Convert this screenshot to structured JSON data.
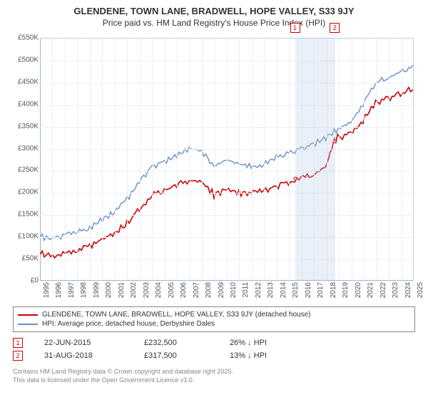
{
  "title": "GLENDENE, TOWN LANE, BRADWELL, HOPE VALLEY, S33 9JY",
  "subtitle": "Price paid vs. HM Land Registry's House Price Index (HPI)",
  "chart": {
    "type": "line",
    "background_color": "#ffffff",
    "grid_color": "#eaf0f8",
    "axis_color": "#94b5d8",
    "label_fontsize": 10,
    "ylim": [
      0,
      550000
    ],
    "ytick_step": 50000,
    "ylabels": [
      "£0",
      "£50K",
      "£100K",
      "£150K",
      "£200K",
      "£250K",
      "£300K",
      "£350K",
      "£400K",
      "£450K",
      "£500K",
      "£550K"
    ],
    "xlim_years": [
      1995,
      2025
    ],
    "xticks": [
      1995,
      1996,
      1997,
      1998,
      1999,
      2000,
      2001,
      2002,
      2003,
      2004,
      2005,
      2006,
      2007,
      2008,
      2009,
      2010,
      2011,
      2012,
      2013,
      2014,
      2015,
      2016,
      2017,
      2018,
      2019,
      2020,
      2021,
      2022,
      2023,
      2024,
      2025
    ],
    "series": [
      {
        "name": "HPI: Average price, detached house, Derbyshire Dales",
        "color": "#6a8fc5",
        "line_width": 1.4,
        "values": [
          [
            1995,
            100000
          ],
          [
            1996,
            95000
          ],
          [
            1997,
            105000
          ],
          [
            1998,
            110000
          ],
          [
            1999,
            120000
          ],
          [
            2000,
            140000
          ],
          [
            2001,
            155000
          ],
          [
            2002,
            185000
          ],
          [
            2003,
            225000
          ],
          [
            2004,
            260000
          ],
          [
            2005,
            270000
          ],
          [
            2006,
            285000
          ],
          [
            2007,
            300000
          ],
          [
            2008,
            295000
          ],
          [
            2009,
            260000
          ],
          [
            2010,
            275000
          ],
          [
            2011,
            265000
          ],
          [
            2012,
            260000
          ],
          [
            2013,
            265000
          ],
          [
            2014,
            280000
          ],
          [
            2015,
            290000
          ],
          [
            2016,
            300000
          ],
          [
            2017,
            310000
          ],
          [
            2018,
            325000
          ],
          [
            2019,
            345000
          ],
          [
            2020,
            360000
          ],
          [
            2021,
            400000
          ],
          [
            2022,
            450000
          ],
          [
            2023,
            460000
          ],
          [
            2024,
            475000
          ],
          [
            2025,
            485000
          ]
        ]
      },
      {
        "name": "GLENDENE, TOWN LANE, BRADWELL, HOPE VALLEY, S33 9JY (detached house)",
        "color": "#cc0000",
        "line_width": 1.6,
        "values": [
          [
            1995,
            60000
          ],
          [
            1996,
            58000
          ],
          [
            1997,
            65000
          ],
          [
            1998,
            70000
          ],
          [
            1999,
            78000
          ],
          [
            2000,
            95000
          ],
          [
            2001,
            108000
          ],
          [
            2002,
            130000
          ],
          [
            2003,
            165000
          ],
          [
            2004,
            195000
          ],
          [
            2005,
            205000
          ],
          [
            2006,
            218000
          ],
          [
            2007,
            228000
          ],
          [
            2008,
            225000
          ],
          [
            2009,
            195000
          ],
          [
            2010,
            208000
          ],
          [
            2011,
            200000
          ],
          [
            2012,
            198000
          ],
          [
            2013,
            203000
          ],
          [
            2014,
            215000
          ],
          [
            2015,
            225000
          ],
          [
            2016,
            232000
          ],
          [
            2017,
            240000
          ],
          [
            2018,
            260000
          ],
          [
            2018.7,
            320000
          ],
          [
            2019,
            325000
          ],
          [
            2020,
            335000
          ],
          [
            2021,
            365000
          ],
          [
            2022,
            405000
          ],
          [
            2023,
            415000
          ],
          [
            2024,
            425000
          ],
          [
            2025,
            435000
          ]
        ]
      }
    ],
    "highlight_band": {
      "x_start": 2015.5,
      "x_end": 2018.7,
      "color": "rgba(180,200,225,0.28)"
    },
    "sale_markers": [
      {
        "n": "1",
        "year": 2015.47,
        "y": 232500
      },
      {
        "n": "2",
        "year": 2018.67,
        "y": 317500
      }
    ]
  },
  "legend": [
    {
      "color": "#cc0000",
      "label": "GLENDENE, TOWN LANE, BRADWELL, HOPE VALLEY, S33 9JY (detached house)"
    },
    {
      "color": "#6a8fc5",
      "label": "HPI: Average price, detached house, Derbyshire Dales"
    }
  ],
  "sales": [
    {
      "n": "1",
      "date": "22-JUN-2015",
      "price": "£232,500",
      "delta": "26% ↓ HPI"
    },
    {
      "n": "2",
      "date": "31-AUG-2018",
      "price": "£317,500",
      "delta": "13% ↓ HPI"
    }
  ],
  "footer_line1": "Contains HM Land Registry data © Crown copyright and database right 2025.",
  "footer_line2": "This data is licensed under the Open Government Licence v3.0."
}
